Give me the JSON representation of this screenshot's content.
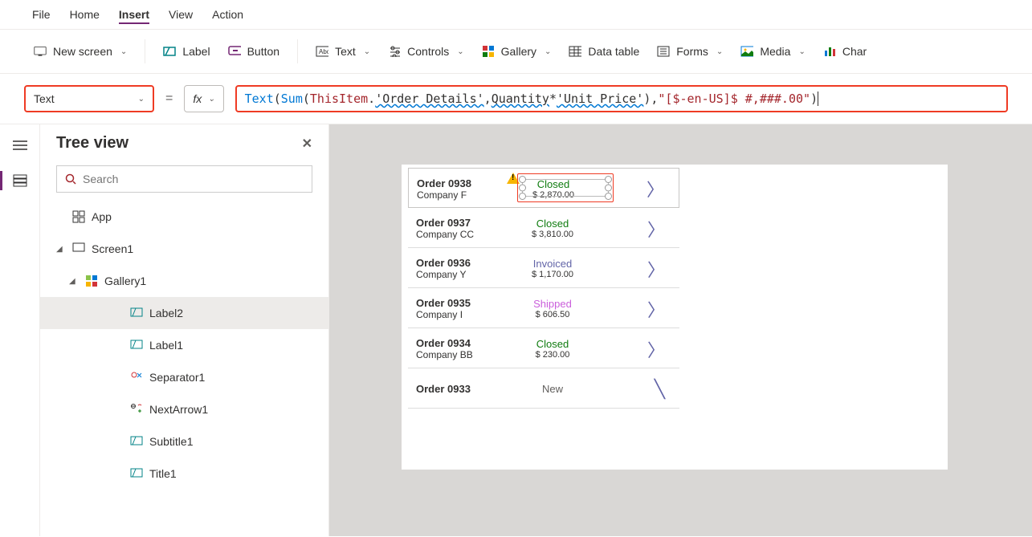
{
  "menu": {
    "file": "File",
    "home": "Home",
    "insert": "Insert",
    "view": "View",
    "action": "Action"
  },
  "ribbon": {
    "new_screen": "New screen",
    "label": "Label",
    "button": "Button",
    "text": "Text",
    "controls": "Controls",
    "gallery": "Gallery",
    "data_table": "Data table",
    "forms": "Forms",
    "media": "Media",
    "chart": "Char"
  },
  "formula": {
    "property": "Text",
    "equals": "=",
    "fx": "fx",
    "tokens": {
      "text_fn": "Text",
      "paren_open": "(",
      "space": " ",
      "sum_fn": "Sum",
      "paren_open2": "(",
      "thisitem": "ThisItem",
      "dot": ".",
      "order_details": "'Order Details'",
      "comma": ",",
      "quantity": "Quantity",
      "star": " * ",
      "unit_price": "'Unit Price'",
      "paren_close": " )",
      "comma2": ",",
      "format": "\"[$-en-US]$ #,###.00\"",
      "paren_close2": " )"
    }
  },
  "tree": {
    "title": "Tree view",
    "search_placeholder": "Search",
    "app": "App",
    "screen": "Screen1",
    "gallery": "Gallery1",
    "items": {
      "label2": "Label2",
      "label1": "Label1",
      "separator": "Separator1",
      "nextarrow": "NextArrow1",
      "subtitle": "Subtitle1",
      "title": "Title1"
    }
  },
  "gallery_data": {
    "rows": [
      {
        "order": "Order 0938",
        "company": "Company F",
        "status": "Closed",
        "status_class": "status-closed",
        "price": "$ 2,870.00",
        "selected": true
      },
      {
        "order": "Order 0937",
        "company": "Company CC",
        "status": "Closed",
        "status_class": "status-closed",
        "price": "$ 3,810.00"
      },
      {
        "order": "Order 0936",
        "company": "Company Y",
        "status": "Invoiced",
        "status_class": "status-invoiced",
        "price": "$ 1,170.00"
      },
      {
        "order": "Order 0935",
        "company": "Company I",
        "status": "Shipped",
        "status_class": "status-shipped",
        "price": "$ 606.50"
      },
      {
        "order": "Order 0934",
        "company": "Company BB",
        "status": "Closed",
        "status_class": "status-closed",
        "price": "$ 230.00"
      },
      {
        "order": "Order 0933",
        "company": "",
        "status": "New",
        "status_class": "status-new",
        "price": ""
      }
    ],
    "colors": {
      "closed": "#107c10",
      "invoiced": "#6264a7",
      "shipped": "#ca5edb",
      "new": "#605e5c",
      "arrow": "#6264a7"
    }
  },
  "highlight_color": "#ef3b24",
  "accent_color": "#742774"
}
